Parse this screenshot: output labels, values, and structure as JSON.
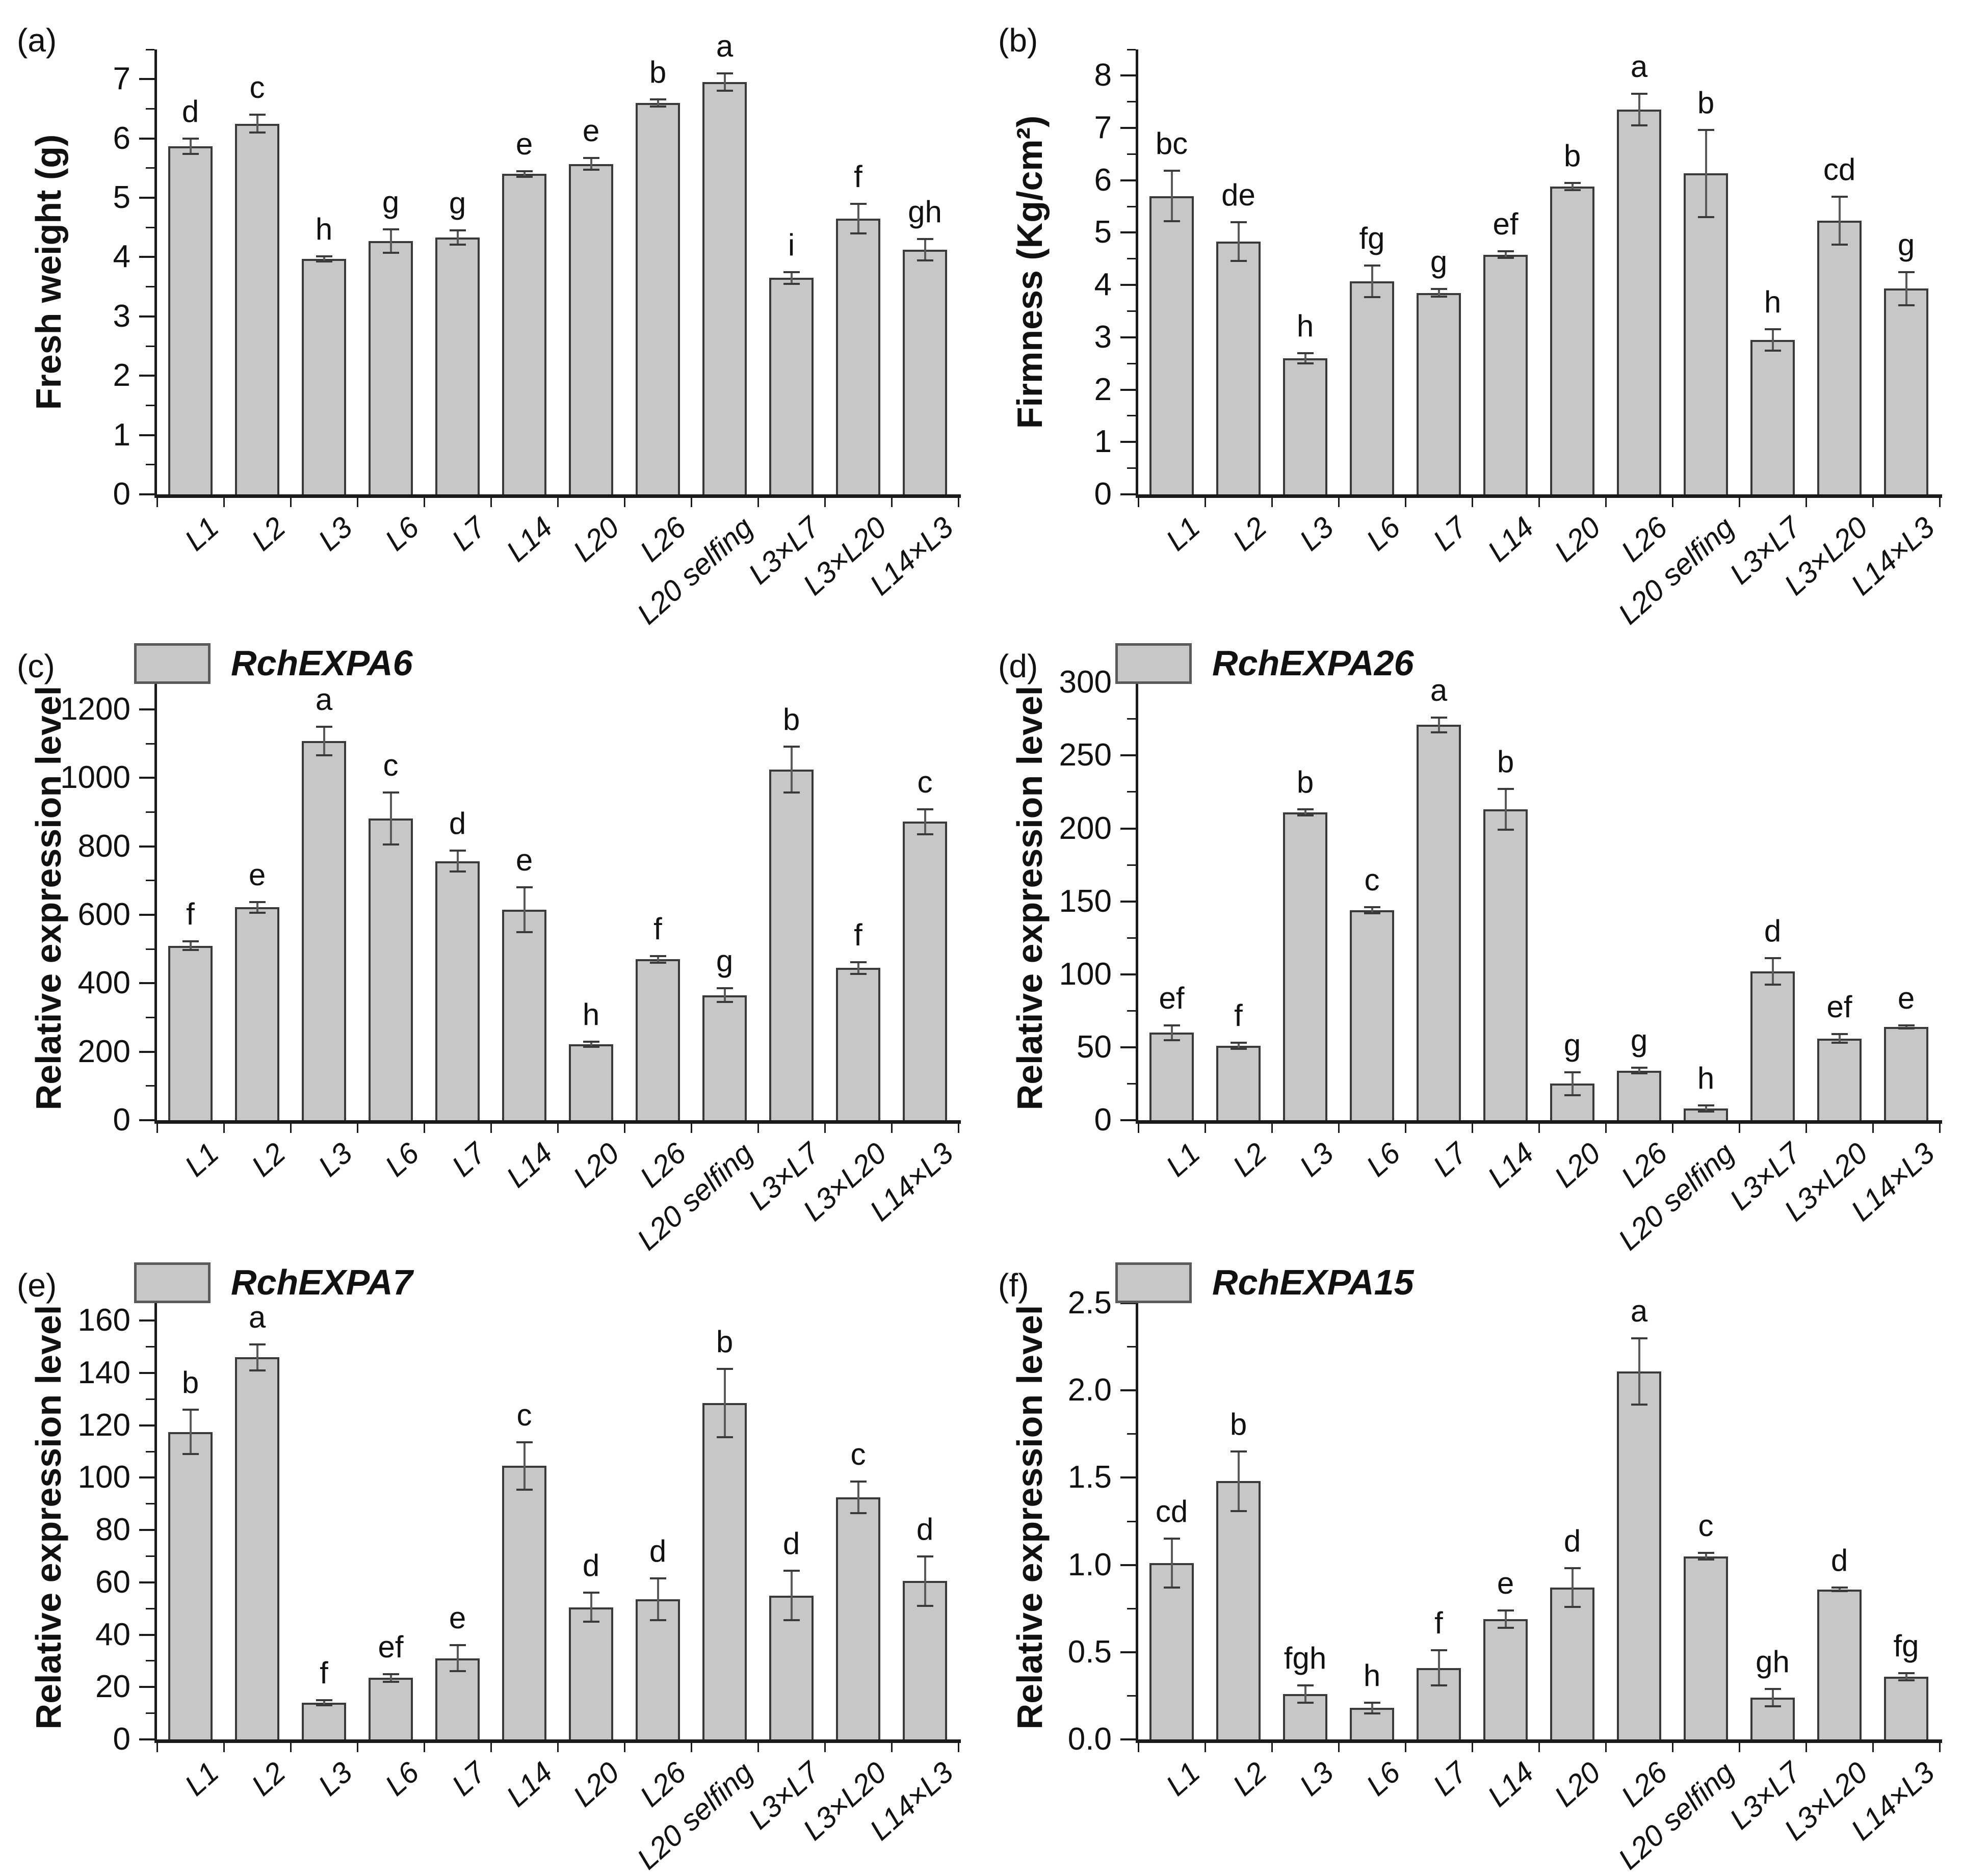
{
  "figure": {
    "background": "#ffffff",
    "bar_fill": "#c7c7c7",
    "bar_border": "#3a3a3a",
    "axis_color": "#1a1a1a",
    "text_color": "#111111"
  },
  "chart_data": [
    {
      "type": "bar",
      "panel_letter": "(a)",
      "title": "",
      "xlabel": "",
      "ylabel": "Fresh weight (g)",
      "legend_label": null,
      "categories": [
        "L1",
        "L2",
        "L3",
        "L6",
        "L7",
        "L14",
        "L20",
        "L26",
        "L20 selfing",
        "L3×L7",
        "L3×L20",
        "L14×L3"
      ],
      "values": [
        5.87,
        6.25,
        3.97,
        4.27,
        4.33,
        5.4,
        5.57,
        6.6,
        6.95,
        3.65,
        4.65,
        4.12
      ],
      "errors": [
        0.13,
        0.15,
        0.04,
        0.2,
        0.12,
        0.05,
        0.1,
        0.06,
        0.15,
        0.1,
        0.25,
        0.18
      ],
      "sig_letters": [
        "d",
        "c",
        "h",
        "g",
        "g",
        "e",
        "e",
        "b",
        "a",
        "i",
        "f",
        "gh"
      ],
      "ylim": [
        0,
        7.5
      ],
      "ytick_values": [
        0,
        1,
        2,
        3,
        4,
        5,
        6,
        7
      ],
      "ytick_labels": [
        "0",
        "1",
        "2",
        "3",
        "4",
        "5",
        "6",
        "7"
      ],
      "minor_tick_step": 0.5,
      "grid": false,
      "legend_position": "none"
    },
    {
      "type": "bar",
      "panel_letter": "(b)",
      "title": "",
      "xlabel": "",
      "ylabel": "Firmness (Kg/cm²)",
      "legend_label": null,
      "categories": [
        "L1",
        "L2",
        "L3",
        "L6",
        "L7",
        "L14",
        "L20",
        "L26",
        "L20 selfing",
        "L3×L7",
        "L3×L20",
        "L14×L3"
      ],
      "values": [
        5.7,
        4.83,
        2.6,
        4.07,
        3.85,
        4.58,
        5.88,
        7.35,
        6.13,
        2.95,
        5.23,
        3.93
      ],
      "errors": [
        0.48,
        0.37,
        0.1,
        0.3,
        0.07,
        0.06,
        0.07,
        0.3,
        0.83,
        0.2,
        0.46,
        0.32
      ],
      "sig_letters": [
        "bc",
        "de",
        "h",
        "fg",
        "g",
        "ef",
        "b",
        "a",
        "b",
        "h",
        "cd",
        "g"
      ],
      "ylim": [
        0,
        8.5
      ],
      "ytick_values": [
        0,
        1,
        2,
        3,
        4,
        5,
        6,
        7,
        8
      ],
      "ytick_labels": [
        "0",
        "1",
        "2",
        "3",
        "4",
        "5",
        "6",
        "7",
        "8"
      ],
      "minor_tick_step": 0.5,
      "grid": false,
      "legend_position": "none"
    },
    {
      "type": "bar",
      "panel_letter": "(c)",
      "title": "",
      "xlabel": "",
      "ylabel": "Relative expression level",
      "legend_label": "RchEXPA6",
      "categories": [
        "L1",
        "L2",
        "L3",
        "L6",
        "L7",
        "L14",
        "L20",
        "L26",
        "L20 selfing",
        "L3×L7",
        "L3×L20",
        "L14×L3"
      ],
      "values": [
        510,
        622,
        1108,
        882,
        757,
        615,
        222,
        470,
        365,
        1025,
        445,
        872
      ],
      "errors": [
        12,
        16,
        42,
        76,
        30,
        66,
        8,
        10,
        20,
        67,
        17,
        37
      ],
      "sig_letters": [
        "f",
        "e",
        "a",
        "c",
        "d",
        "e",
        "h",
        "f",
        "g",
        "b",
        "f",
        "c"
      ],
      "ylim": [
        0,
        1300
      ],
      "ytick_values": [
        0,
        200,
        400,
        600,
        800,
        1000,
        1200
      ],
      "ytick_labels": [
        "0",
        "200",
        "400",
        "600",
        "800",
        "1000",
        "1200"
      ],
      "minor_tick_step": 100,
      "grid": false,
      "legend_position": "top-left"
    },
    {
      "type": "bar",
      "panel_letter": "(d)",
      "title": "",
      "xlabel": "",
      "ylabel": "Relative expression level",
      "legend_label": "RchEXPA26",
      "categories": [
        "L1",
        "L2",
        "L3",
        "L6",
        "L7",
        "L14",
        "L20",
        "L26",
        "L20 selfing",
        "L3×L7",
        "L3×L20",
        "L14×L3"
      ],
      "values": [
        60,
        51,
        211,
        144,
        271,
        213,
        25,
        34,
        8,
        102,
        56,
        64
      ],
      "errors": [
        5,
        2,
        2,
        2,
        5,
        14,
        8,
        2,
        2,
        9,
        3,
        1
      ],
      "sig_letters": [
        "ef",
        "f",
        "b",
        "c",
        "a",
        "b",
        "g",
        "g",
        "h",
        "d",
        "ef",
        "e"
      ],
      "ylim": [
        0,
        305
      ],
      "ytick_values": [
        0,
        50,
        100,
        150,
        200,
        250,
        300
      ],
      "ytick_labels": [
        "0",
        "50",
        "100",
        "150",
        "200",
        "250",
        "300"
      ],
      "minor_tick_step": 25,
      "grid": false,
      "legend_position": "top-left"
    },
    {
      "type": "bar",
      "panel_letter": "(e)",
      "title": "",
      "xlabel": "",
      "ylabel": "Relative expression level",
      "legend_label": "RchEXPA7",
      "categories": [
        "L1",
        "L2",
        "L3",
        "L6",
        "L7",
        "L14",
        "L20",
        "L26",
        "L20 selfing",
        "L3×L7",
        "L3×L20",
        "L14×L3"
      ],
      "values": [
        117.5,
        146,
        14,
        23.5,
        31,
        104.5,
        50.5,
        53.5,
        128.5,
        55,
        92.5,
        60.5
      ],
      "errors": [
        8.5,
        5,
        1,
        1.5,
        5,
        9,
        5.5,
        8,
        13,
        9.5,
        6,
        9.5
      ],
      "sig_letters": [
        "b",
        "a",
        "f",
        "ef",
        "e",
        "c",
        "d",
        "d",
        "b",
        "d",
        "c",
        "d"
      ],
      "ylim": [
        0,
        170
      ],
      "ytick_values": [
        0,
        20,
        40,
        60,
        80,
        100,
        120,
        140,
        160
      ],
      "ytick_labels": [
        "0",
        "20",
        "40",
        "60",
        "80",
        "100",
        "120",
        "140",
        "160"
      ],
      "minor_tick_step": 10,
      "grid": false,
      "legend_position": "top-left"
    },
    {
      "type": "bar",
      "panel_letter": "(f)",
      "title": "",
      "xlabel": "",
      "ylabel": "Relative expression level",
      "legend_label": "RchEXPA15",
      "categories": [
        "L1",
        "L2",
        "L3",
        "L6",
        "L7",
        "L14",
        "L20",
        "L26",
        "L20 selfing",
        "L3×L7",
        "L3×L20",
        "L14×L3"
      ],
      "values": [
        1.01,
        1.48,
        0.26,
        0.18,
        0.41,
        0.69,
        0.87,
        2.11,
        1.05,
        0.24,
        0.86,
        0.36
      ],
      "errors": [
        0.14,
        0.17,
        0.05,
        0.03,
        0.1,
        0.05,
        0.11,
        0.19,
        0.02,
        0.05,
        0.01,
        0.02
      ],
      "sig_letters": [
        "cd",
        "b",
        "fgh",
        "h",
        "f",
        "e",
        "d",
        "a",
        "c",
        "gh",
        "d",
        "fg"
      ],
      "ylim": [
        0,
        2.55
      ],
      "ytick_values": [
        0,
        0.5,
        1.0,
        1.5,
        2.0,
        2.5
      ],
      "ytick_labels": [
        "0.0",
        "0.5",
        "1.0",
        "1.5",
        "2.0",
        "2.5"
      ],
      "minor_tick_step": 0.25,
      "grid": false,
      "legend_position": "top-left"
    }
  ]
}
